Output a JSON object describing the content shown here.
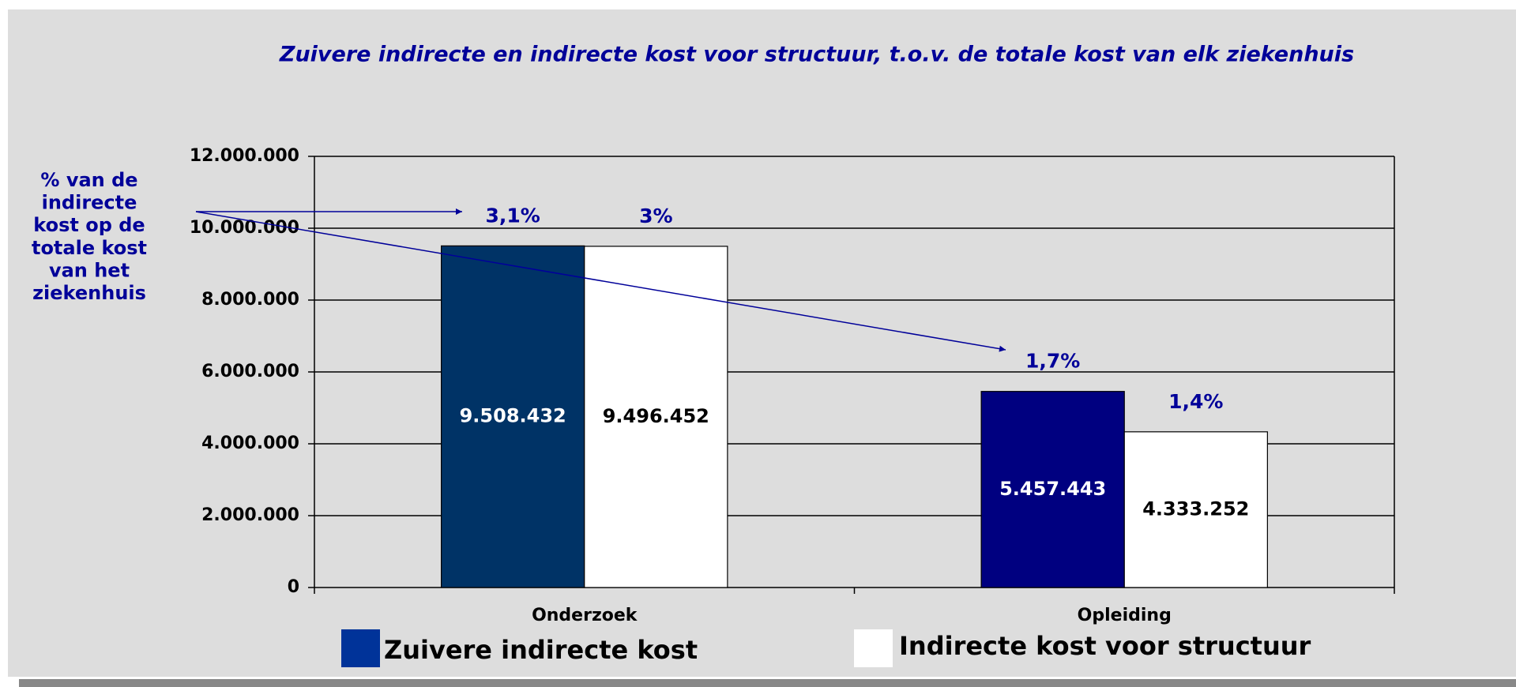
{
  "chart_data": {
    "type": "bar",
    "title": "Zuivere indirecte en indirecte kost voor structuur, t.o.v. de totale kost van elk ziekenhuis",
    "categories": [
      "Onderzoek",
      "Opleiding"
    ],
    "series": [
      {
        "name": "Zuivere indirecte kost",
        "color": "#003399",
        "bar_colors": [
          "#003366",
          "#000080"
        ],
        "values": [
          9508432,
          5457443
        ],
        "value_labels": [
          "9.508.432",
          "5.457.443"
        ],
        "annotations": [
          "3,1%",
          "1,7%"
        ]
      },
      {
        "name": "Indirecte kost voor structuur",
        "color": "#ffffff",
        "bar_colors": [
          "#ffffff",
          "#ffffff"
        ],
        "values": [
          9496452,
          4333252
        ],
        "value_labels": [
          "9.496.452",
          "4.333.252"
        ],
        "annotations": [
          "3%",
          "1,4%"
        ]
      }
    ],
    "ylim": [
      0,
      12000000
    ],
    "yticks": [
      0,
      {
        "value": 2000000,
        "label": "2.000.000"
      },
      {
        "value": 4000000,
        "label": "4.000.000"
      },
      {
        "value": 6000000,
        "label": "6.000.000"
      },
      {
        "value": 8000000,
        "label": "8.000.000"
      },
      {
        "value": 10000000,
        "label": "10.000.000"
      },
      {
        "value": 12000000,
        "label": "12.000.000"
      }
    ],
    "grid": true,
    "side_note": [
      "% van de",
      "indirecte",
      "kost op de",
      "totale kost",
      "van het",
      "ziekenhuis"
    ]
  }
}
